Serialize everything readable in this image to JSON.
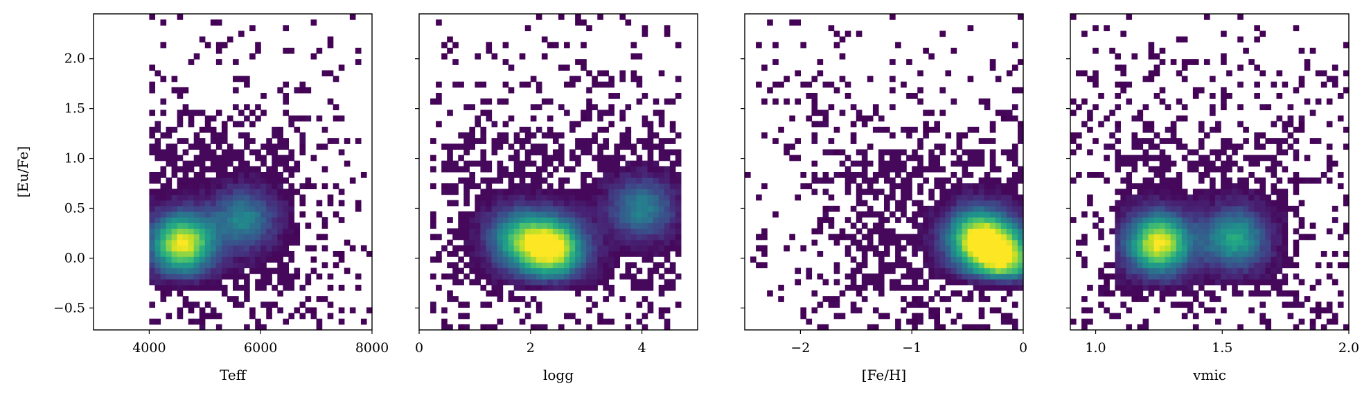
{
  "chart_data": [
    {
      "type": "heatmap",
      "xlabel": "Teff",
      "ylabel": "[Eu/Fe]",
      "xlim": [
        3000,
        8000
      ],
      "ylim": [
        -0.72,
        2.45
      ],
      "xticks": [
        4000,
        6000,
        8000
      ],
      "yticks": [
        -0.5,
        0.0,
        0.5,
        1.0,
        1.5,
        2.0
      ],
      "xtick_labels": [
        "4000",
        "6000",
        "8000"
      ],
      "ytick_labels": [
        "−0.5",
        "0.0",
        "0.5",
        "1.0",
        "1.5",
        "2.0"
      ],
      "colormap": "viridis",
      "density_peaks": [
        {
          "x": 4600,
          "y": 0.15,
          "weight": 1.0
        },
        {
          "x": 5700,
          "y": 0.4,
          "weight": 0.45
        }
      ],
      "core_extent": {
        "x": [
          4000,
          6600
        ],
        "y": [
          -0.35,
          1.25
        ]
      },
      "sparse_extent": {
        "x": [
          4000,
          8000
        ],
        "y": [
          -0.7,
          2.45
        ]
      }
    },
    {
      "type": "heatmap",
      "xlabel": "logg",
      "ylabel": "",
      "xlim": [
        0,
        5
      ],
      "ylim": [
        -0.72,
        2.45
      ],
      "xticks": [
        0,
        2,
        4
      ],
      "yticks": [
        -0.5,
        0.0,
        0.5,
        1.0,
        1.5,
        2.0
      ],
      "xtick_labels": [
        "0",
        "2",
        "4"
      ],
      "ytick_labels": [],
      "colormap": "viridis",
      "density_peaks": [
        {
          "x": 2.4,
          "y": 0.1,
          "weight": 1.0
        },
        {
          "x": 1.8,
          "y": 0.2,
          "weight": 0.6
        },
        {
          "x": 4.0,
          "y": 0.5,
          "weight": 0.45
        }
      ],
      "core_extent": {
        "x": [
          0.5,
          4.7
        ],
        "y": [
          -0.35,
          1.25
        ]
      },
      "sparse_extent": {
        "x": [
          0.2,
          4.7
        ],
        "y": [
          -0.7,
          2.45
        ]
      }
    },
    {
      "type": "heatmap",
      "xlabel": "[Fe/H]",
      "ylabel": "",
      "xlim": [
        -2.5,
        0
      ],
      "ylim": [
        -0.72,
        2.45
      ],
      "xticks": [
        -2,
        -1,
        0
      ],
      "yticks": [
        -0.5,
        0.0,
        0.5,
        1.0,
        1.5,
        2.0
      ],
      "xtick_labels": [
        "−2",
        "−1",
        "0"
      ],
      "ytick_labels": [],
      "colormap": "viridis",
      "density_peaks": [
        {
          "x": -0.4,
          "y": 0.2,
          "weight": 1.0
        },
        {
          "x": -0.15,
          "y": 0.0,
          "weight": 0.8
        }
      ],
      "core_extent": {
        "x": [
          -1.6,
          0
        ],
        "y": [
          -0.3,
          1.1
        ]
      },
      "sparse_extent": {
        "x": [
          -2.5,
          0
        ],
        "y": [
          -0.7,
          2.45
        ]
      }
    },
    {
      "type": "heatmap",
      "xlabel": "vmic",
      "ylabel": "",
      "xlim": [
        0.9,
        2.0
      ],
      "ylim": [
        -0.72,
        2.45
      ],
      "xticks": [
        1.0,
        1.5,
        2.0
      ],
      "yticks": [
        -0.5,
        0.0,
        0.5,
        1.0,
        1.5,
        2.0
      ],
      "xtick_labels": [
        "1.0",
        "1.5",
        "2.0"
      ],
      "ytick_labels": [],
      "colormap": "viridis",
      "density_peaks": [
        {
          "x": 1.25,
          "y": 0.15,
          "weight": 1.0
        },
        {
          "x": 1.55,
          "y": 0.2,
          "weight": 0.6
        }
      ],
      "core_extent": {
        "x": [
          1.08,
          1.75
        ],
        "y": [
          -0.4,
          1.2
        ]
      },
      "sparse_extent": {
        "x": [
          0.9,
          2.0
        ],
        "y": [
          -0.7,
          2.45
        ]
      }
    }
  ]
}
